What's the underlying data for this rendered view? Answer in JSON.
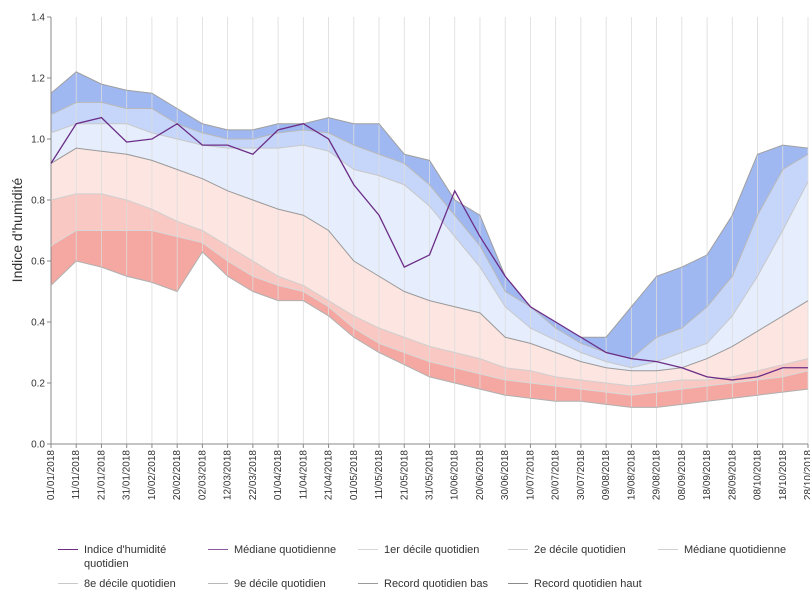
{
  "chart_data": {
    "type": "band-line",
    "y_label": "Indice d'humidité",
    "x": [
      "01/01/2018",
      "11/01/2018",
      "21/01/2018",
      "31/01/2018",
      "10/02/2018",
      "20/02/2018",
      "02/03/2018",
      "12/03/2018",
      "22/03/2018",
      "01/04/2018",
      "11/04/2018",
      "21/04/2018",
      "01/05/2018",
      "11/05/2018",
      "21/05/2018",
      "31/05/2018",
      "10/06/2018",
      "20/06/2018",
      "30/06/2018",
      "10/07/2018",
      "20/07/2018",
      "30/07/2018",
      "09/08/2018",
      "19/08/2018",
      "29/08/2018",
      "08/09/2018",
      "18/09/2018",
      "28/09/2018",
      "08/10/2018",
      "18/10/2018",
      "28/10/2018"
    ],
    "ylim": [
      0,
      1.4
    ],
    "yticks": [
      {
        "value": 0,
        "label": "0.0"
      },
      0.2,
      0.4,
      0.6,
      0.8,
      {
        "value": 1,
        "label": "1.0"
      },
      1.2,
      1.4
    ],
    "grid": true,
    "series": [
      {
        "color": "#b0b0b0",
        "fill": null,
        "values": [
          0.52,
          0.6,
          0.58,
          0.55,
          0.53,
          0.5,
          0.63,
          0.55,
          0.5,
          0.47,
          0.47,
          0.42,
          0.35,
          0.3,
          0.26,
          0.22,
          0.2,
          0.18,
          0.16,
          0.15,
          0.14,
          0.14,
          0.13,
          0.12,
          0.12,
          0.13,
          0.14,
          0.15,
          0.16,
          0.17,
          0.18
        ]
      },
      {
        "color": "#d8d8d8",
        "fill": "#f5a8a2",
        "values": [
          0.65,
          0.7,
          0.7,
          0.7,
          0.7,
          0.68,
          0.66,
          0.6,
          0.55,
          0.52,
          0.5,
          0.45,
          0.38,
          0.33,
          0.3,
          0.27,
          0.25,
          0.23,
          0.21,
          0.2,
          0.19,
          0.18,
          0.17,
          0.16,
          0.17,
          0.18,
          0.19,
          0.2,
          0.21,
          0.22,
          0.24
        ]
      },
      {
        "color": "#cfcfcf",
        "fill": "#fac8c2",
        "values": [
          0.8,
          0.82,
          0.82,
          0.8,
          0.77,
          0.73,
          0.7,
          0.65,
          0.6,
          0.55,
          0.52,
          0.47,
          0.42,
          0.38,
          0.35,
          0.32,
          0.3,
          0.28,
          0.25,
          0.24,
          0.22,
          0.21,
          0.2,
          0.19,
          0.2,
          0.21,
          0.21,
          0.22,
          0.24,
          0.26,
          0.28
        ]
      },
      {
        "color": "#9a9a9a",
        "fill": "#fde5e1",
        "values": [
          0.92,
          0.97,
          0.96,
          0.95,
          0.93,
          0.9,
          0.87,
          0.83,
          0.8,
          0.77,
          0.75,
          0.7,
          0.6,
          0.55,
          0.5,
          0.47,
          0.45,
          0.43,
          0.35,
          0.33,
          0.3,
          0.27,
          0.25,
          0.24,
          0.24,
          0.25,
          0.28,
          0.32,
          0.37,
          0.42,
          0.47
        ]
      },
      {
        "color": "#c8c8c8",
        "fill": "#e6eefe",
        "values": [
          1.02,
          1.05,
          1.05,
          1.05,
          1.02,
          1.0,
          0.98,
          0.97,
          0.97,
          0.97,
          0.98,
          0.96,
          0.9,
          0.88,
          0.85,
          0.78,
          0.68,
          0.58,
          0.45,
          0.38,
          0.34,
          0.3,
          0.27,
          0.25,
          0.27,
          0.3,
          0.33,
          0.42,
          0.55,
          0.7,
          0.86
        ]
      },
      {
        "color": "#b8b8b8",
        "fill": "#c6d6fa",
        "values": [
          1.08,
          1.12,
          1.12,
          1.1,
          1.1,
          1.05,
          1.02,
          1.0,
          1.0,
          1.02,
          1.03,
          1.02,
          0.98,
          0.95,
          0.92,
          0.85,
          0.75,
          0.65,
          0.5,
          0.45,
          0.38,
          0.33,
          0.3,
          0.28,
          0.35,
          0.38,
          0.45,
          0.55,
          0.75,
          0.9,
          0.95
        ]
      },
      {
        "color": "#a0a0a0",
        "fill": "#9fb8f2",
        "values": [
          1.15,
          1.22,
          1.18,
          1.16,
          1.15,
          1.1,
          1.05,
          1.03,
          1.03,
          1.05,
          1.05,
          1.07,
          1.05,
          1.05,
          0.95,
          0.93,
          0.8,
          0.75,
          0.55,
          0.45,
          0.4,
          0.35,
          0.35,
          0.45,
          0.55,
          0.58,
          0.62,
          0.75,
          0.95,
          0.98,
          0.97
        ]
      },
      {
        "color": "#6b2d86",
        "fill": null,
        "values": [
          0.92,
          1.05,
          1.07,
          0.99,
          1.0,
          1.05,
          0.98,
          0.98,
          0.95,
          1.03,
          1.05,
          1.0,
          0.85,
          0.75,
          0.58,
          0.62,
          0.83,
          0.68,
          0.55,
          0.45,
          0.4,
          0.35,
          0.3,
          0.28,
          0.27,
          0.25,
          0.22,
          0.21,
          0.22,
          0.25,
          0.25
        ]
      }
    ],
    "legend": [
      {
        "name": "Indice d'humidité quotidien",
        "color": "#6b2d86"
      },
      {
        "name": "Médiane quotidienne",
        "color": "#8a5aa0"
      },
      {
        "name": "1er décile quotidien",
        "color": "#d8d8d8"
      },
      {
        "name": "2e décile quotidien",
        "color": "#cfcfcf"
      },
      {
        "name": "Médiane quotidienne",
        "color": "#d0d0d0"
      },
      {
        "name": "8e décile quotidien",
        "color": "#c8c8c8"
      },
      {
        "name": "9e décile quotidien",
        "color": "#b8b8b8"
      },
      {
        "name": "Record quotidien bas",
        "color": "#9a9a9a"
      },
      {
        "name": "Record quotidien haut",
        "color": "#8a8a8a"
      }
    ]
  }
}
